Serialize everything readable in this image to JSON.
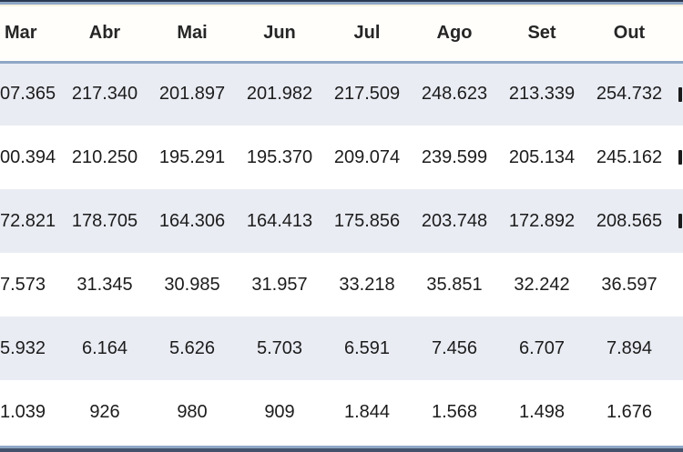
{
  "table": {
    "language": "pt",
    "columns": [
      "Mar",
      "Abr",
      "Mai",
      "Jun",
      "Jul",
      "Ago",
      "Set",
      "Out"
    ],
    "note_first_column": "leftmost column values are clipped at the image's left edge; only the visible characters are recorded",
    "rows": [
      {
        "cells": [
          "07.365",
          "217.340",
          "201.897",
          "201.982",
          "217.509",
          "248.623",
          "213.339",
          "254.732"
        ]
      },
      {
        "cells": [
          "00.394",
          "210.250",
          "195.291",
          "195.370",
          "209.074",
          "239.599",
          "205.134",
          "245.162"
        ]
      },
      {
        "cells": [
          "72.821",
          "178.705",
          "164.306",
          "164.413",
          "175.856",
          "203.748",
          "172.892",
          "208.565"
        ]
      },
      {
        "cells": [
          "7.573",
          "31.345",
          "30.985",
          "31.957",
          "33.218",
          "35.851",
          "32.242",
          "36.597"
        ]
      },
      {
        "cells": [
          "5.932",
          "6.164",
          "5.626",
          "5.703",
          "6.591",
          "7.456",
          "6.707",
          "7.894"
        ]
      },
      {
        "cells": [
          "1.039",
          "926",
          "980",
          "909",
          "1.844",
          "1.568",
          "1.498",
          "1.676"
        ]
      }
    ],
    "colors": {
      "row_shade": "#e9ecf3",
      "border_blue": "#8fa7c6",
      "border_dark_top": "#2a3950",
      "border_dark_bottom": "#44526b",
      "border_cream": "#f9f2df",
      "text": "#1c1c1c"
    }
  }
}
